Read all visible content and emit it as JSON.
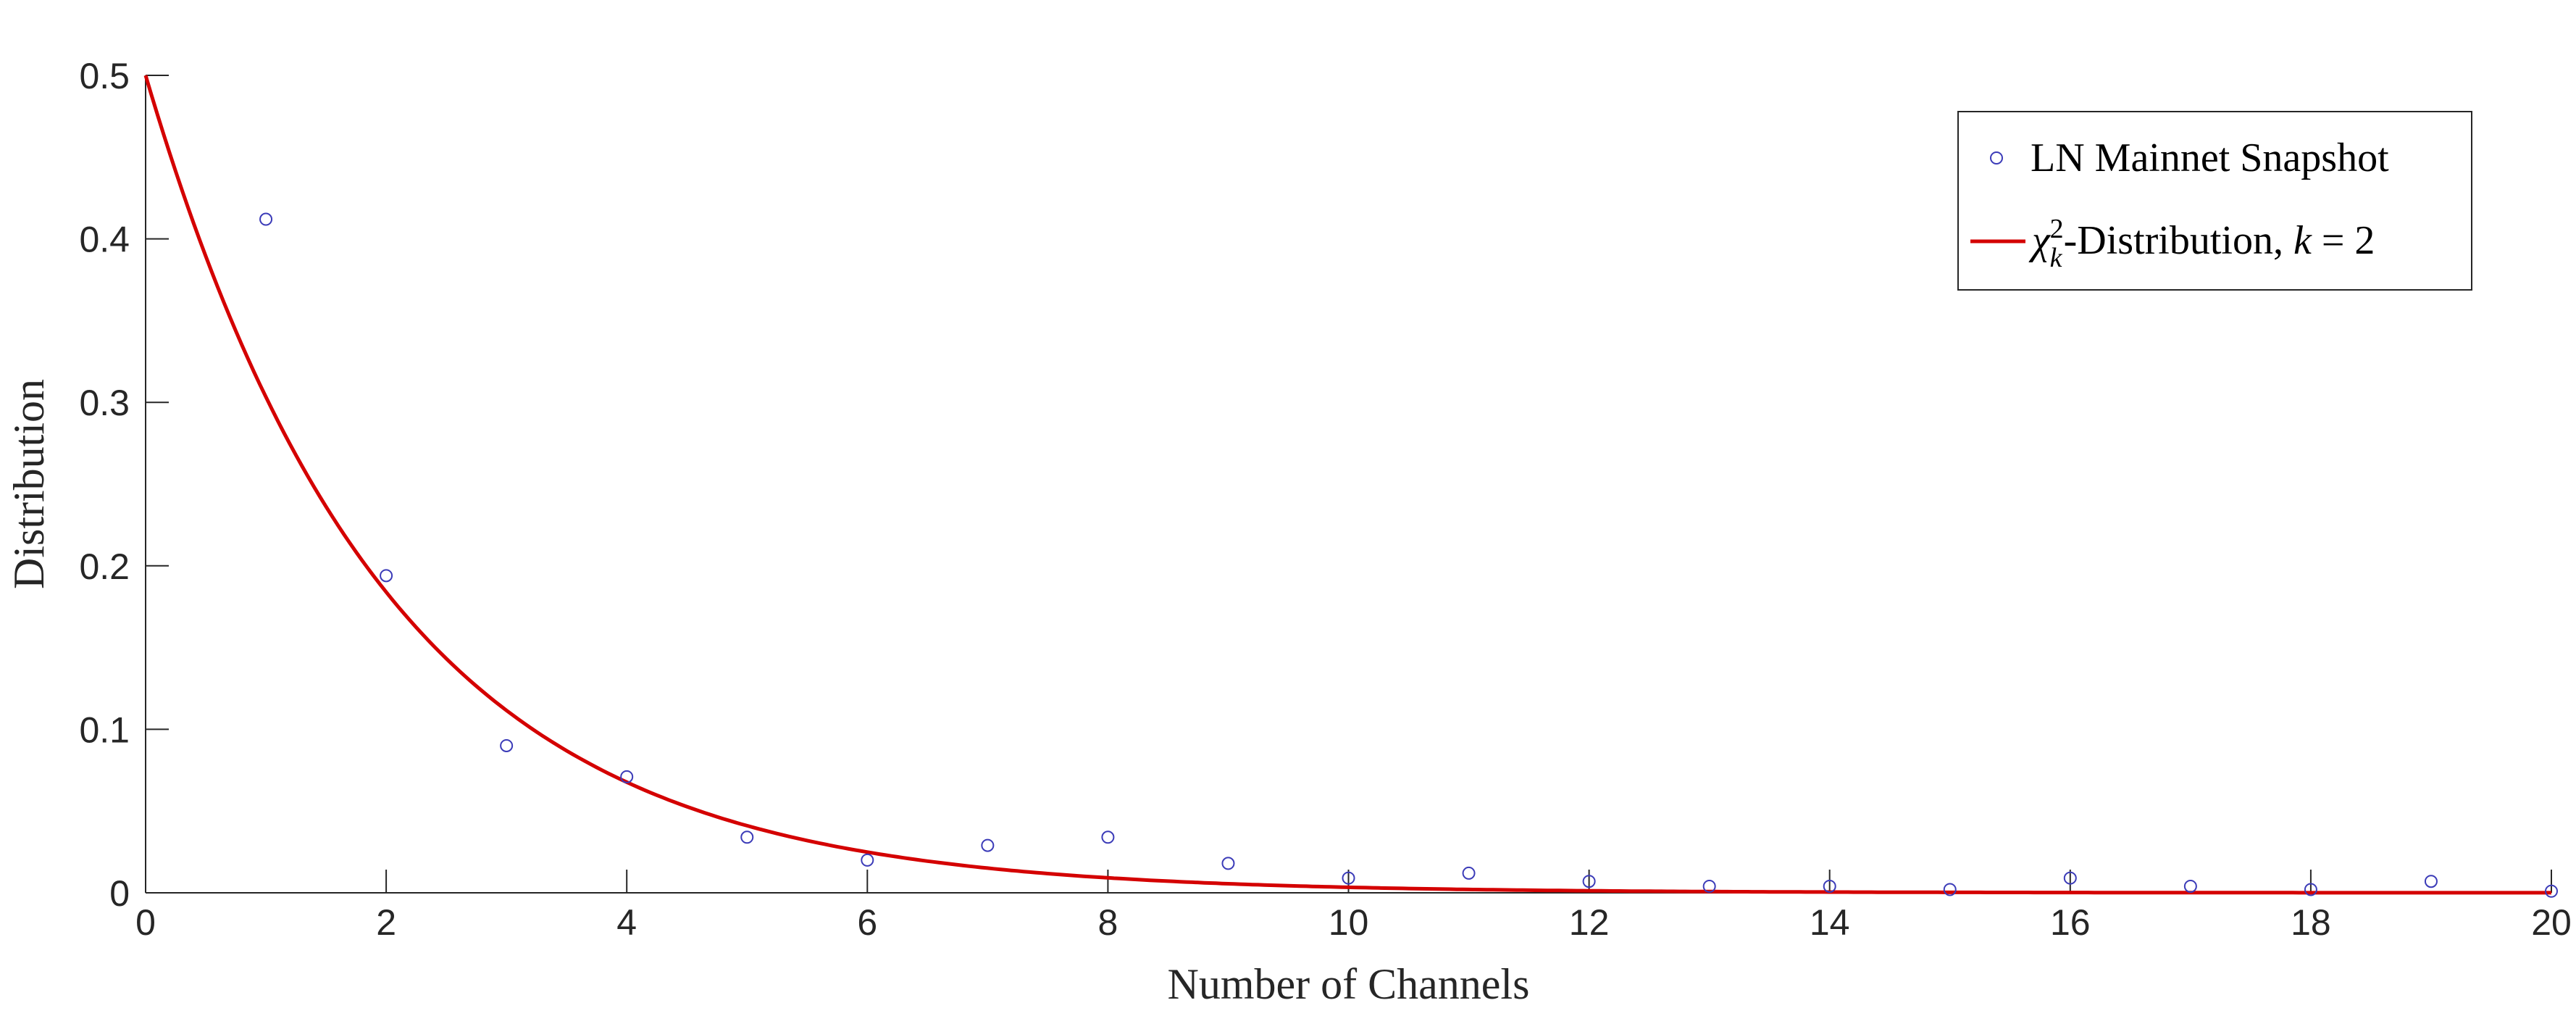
{
  "chart_data": {
    "type": "scatter",
    "xlabel": "Number of Channels",
    "ylabel": "Distribution",
    "xlim": [
      0,
      20
    ],
    "ylim": [
      0,
      0.5
    ],
    "xticks": [
      "0",
      "2",
      "4",
      "6",
      "8",
      "10",
      "12",
      "14",
      "16",
      "18",
      "20"
    ],
    "yticks": [
      "0",
      "0.1",
      "0.2",
      "0.3",
      "0.4",
      "0.5"
    ],
    "grid": false,
    "legend_position": "top-right",
    "series": [
      {
        "name": "LN Mainnet Snapshot",
        "kind": "scatter",
        "color": "#3b3bb8",
        "x": [
          1,
          2,
          3,
          4,
          5,
          6,
          7,
          8,
          9,
          10,
          11,
          12,
          13,
          14,
          15,
          16,
          17,
          18,
          19,
          20
        ],
        "y": [
          0.412,
          0.194,
          0.09,
          0.071,
          0.034,
          0.02,
          0.029,
          0.034,
          0.018,
          0.009,
          0.012,
          0.007,
          0.004,
          0.004,
          0.002,
          0.009,
          0.004,
          0.002,
          0.007,
          0.001
        ]
      },
      {
        "name": "χ²ₖ-Distribution, k = 2",
        "kind": "line",
        "color": "#d40000",
        "function": "0.5*exp(-x/2)"
      }
    ],
    "legend": {
      "scatter_label": "LN Mainnet Snapshot",
      "line_label_chi": "χ",
      "line_label_sup": "2",
      "line_label_sub": "k",
      "line_label_rest": "-Distribution, ",
      "line_label_k": "k",
      "line_label_eq": " = 2"
    }
  }
}
